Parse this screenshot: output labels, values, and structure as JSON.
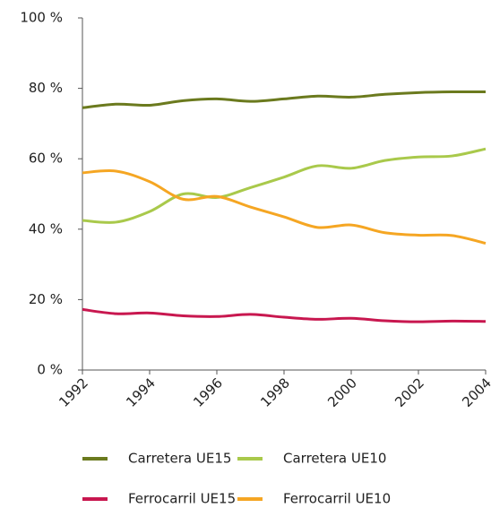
{
  "chart_data": {
    "type": "line",
    "x": [
      1992,
      1993,
      1994,
      1995,
      1996,
      1997,
      1998,
      1999,
      2000,
      2001,
      2002,
      2003,
      2004
    ],
    "series": [
      {
        "name": "Carretera UE15",
        "color": "#6b7a1e",
        "values": [
          74.5,
          75.5,
          75.2,
          76.5,
          77,
          76.3,
          77,
          77.8,
          77.5,
          78.3,
          78.8,
          79,
          79
        ]
      },
      {
        "name": "Carretera UE10",
        "color": "#a9c94b",
        "values": [
          42.5,
          42,
          45,
          50,
          49,
          51.8,
          54.8,
          58,
          57.3,
          59.5,
          60.5,
          60.8,
          62.8
        ]
      },
      {
        "name": "Ferrocarril UE15",
        "color": "#c8174f",
        "values": [
          17.2,
          16,
          16.2,
          15.4,
          15.2,
          15.8,
          15,
          14.4,
          14.7,
          14,
          13.7,
          13.9,
          13.8
        ]
      },
      {
        "name": "Ferrocarril UE10",
        "color": "#f5a623",
        "values": [
          56,
          56.5,
          53.5,
          48.5,
          49.3,
          46.3,
          43.5,
          40.5,
          41.2,
          39,
          38.3,
          38.2,
          36
        ]
      }
    ],
    "xlim": [
      1992,
      2004
    ],
    "xticks": [
      1992,
      1994,
      1996,
      1998,
      2000,
      2002,
      2004
    ],
    "ylim": [
      0,
      100
    ],
    "yticks": [
      {
        "value": 0,
        "label": "0 %"
      },
      {
        "value": 20,
        "label": "20 %"
      },
      {
        "value": 40,
        "label": "40 %"
      },
      {
        "value": 60,
        "label": "60 %"
      },
      {
        "value": 80,
        "label": "80 %"
      },
      {
        "value": 100,
        "label": "100 %"
      }
    ],
    "grid": false
  }
}
